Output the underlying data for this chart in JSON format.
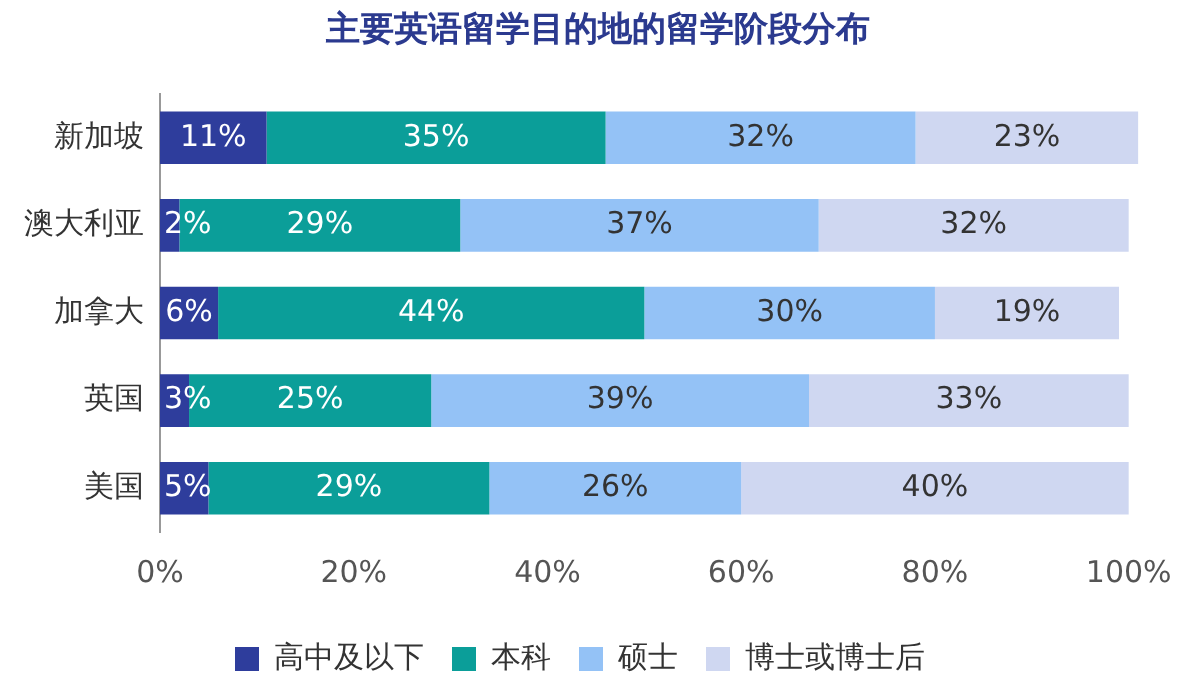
{
  "chart_data": {
    "type": "bar",
    "orientation": "horizontal",
    "stacked": true,
    "title": "主要英语留学目的地的留学阶段分布",
    "categories": [
      "新加坡",
      "澳大利亚",
      "加拿大",
      "英国",
      "美国"
    ],
    "series": [
      {
        "name": "高中及以下",
        "color": "#2e3d9c",
        "values": [
          11,
          2,
          6,
          3,
          5
        ],
        "value_labels": [
          "11%",
          "2%",
          "6%",
          "3%",
          "5%"
        ]
      },
      {
        "name": "本科",
        "color": "#0b9e99",
        "values": [
          35,
          29,
          44,
          25,
          29
        ],
        "value_labels": [
          "35%",
          "29%",
          "44%",
          "25%",
          "29%"
        ]
      },
      {
        "name": "硕士",
        "color": "#94c2f6",
        "values": [
          32,
          37,
          30,
          39,
          26
        ],
        "value_labels": [
          "32%",
          "37%",
          "30%",
          "39%",
          "26%"
        ]
      },
      {
        "name": "博士或博士后",
        "color": "#cfd7f1",
        "values": [
          23,
          32,
          19,
          33,
          40
        ],
        "value_labels": [
          "23%",
          "32%",
          "19%",
          "33%",
          "40%"
        ]
      }
    ],
    "xlim": [
      0,
      101
    ],
    "xticks": [
      {
        "value": 0,
        "label": "0%"
      },
      {
        "value": 20,
        "label": "20%"
      },
      {
        "value": 40,
        "label": "40%"
      },
      {
        "value": 60,
        "label": "60%"
      },
      {
        "value": 80,
        "label": "80%"
      },
      {
        "value": 100,
        "label": "100%"
      }
    ],
    "grid": false,
    "legend": "bottom"
  }
}
